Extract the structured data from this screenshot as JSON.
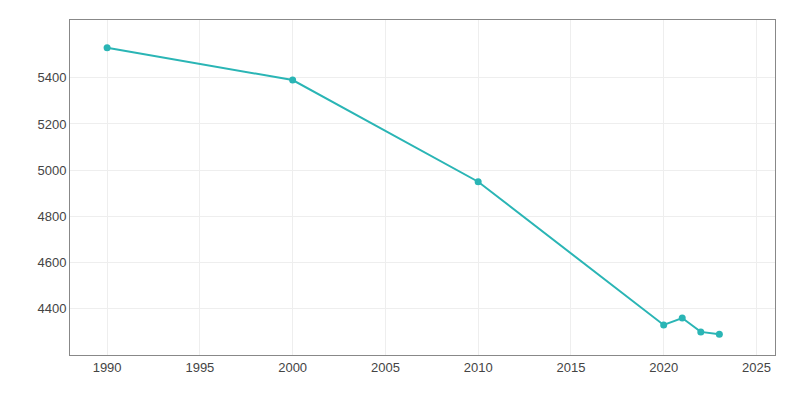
{
  "chart_data": {
    "type": "line",
    "x": [
      1990,
      2000,
      2010,
      2020,
      2021,
      2022,
      2023
    ],
    "values": [
      5530,
      5390,
      4950,
      4330,
      4360,
      4300,
      4290
    ],
    "color": "#2ab5b5",
    "marker": "circle",
    "xlim": [
      1988,
      2026
    ],
    "ylim": [
      4200,
      5650
    ],
    "xticks": [
      1990,
      1995,
      2000,
      2005,
      2010,
      2015,
      2020,
      2025
    ],
    "yticks": [
      4400,
      4600,
      4800,
      5000,
      5200,
      5400
    ],
    "grid": true
  }
}
